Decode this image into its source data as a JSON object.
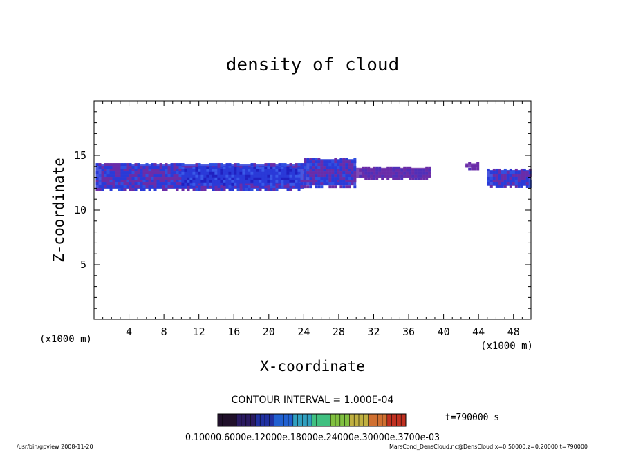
{
  "chart_data": {
    "type": "heatmap",
    "title": "density of cloud",
    "xlabel": "X-coordinate",
    "ylabel": "Z-coordinate",
    "x_unit_left": "(x1000 m)",
    "x_unit_right": "(x1000 m)",
    "xlim": [
      0,
      50
    ],
    "ylim": [
      0,
      20
    ],
    "xticks": [
      "4",
      "8",
      "12",
      "16",
      "20",
      "24",
      "28",
      "32",
      "36",
      "40",
      "44",
      "48"
    ],
    "xtick_values": [
      4,
      8,
      12,
      16,
      20,
      24,
      28,
      32,
      36,
      40,
      44,
      48
    ],
    "yticks": [
      "5",
      "10",
      "15"
    ],
    "ytick_values": [
      5,
      10,
      15
    ],
    "contour_interval": "CONTOUR INTERVAL = 1.000E-04",
    "time_label": "t=790000 s",
    "colorbar_labels": [
      "0.1000e-03",
      "0.6000e-03",
      "0.1200e-02",
      "0.1800e-02",
      "0.2400e-02",
      "0.3000e-02",
      "0.3700e-02"
    ],
    "colorbar_text": "0.10000.6000e.12000e.18000e.24000e.30000e.3700e-03",
    "colors": {
      "low": "#6a2ca8",
      "mid": "#2a3ad8",
      "high": "#2020c0",
      "colorbar": [
        "#20102a",
        "#2a1a60",
        "#2030a0",
        "#2060d0",
        "#30a0c0",
        "#40c080",
        "#80c040",
        "#c0b040",
        "#d07030",
        "#c03020"
      ]
    },
    "cloud_regions": [
      {
        "x_range": [
          0.2,
          24
        ],
        "z_range": [
          11.8,
          14.3
        ],
        "density": "medium"
      },
      {
        "x_range": [
          10,
          23.5
        ],
        "z_range": [
          12.3,
          14.0
        ],
        "density": "high"
      },
      {
        "x_range": [
          24,
          30
        ],
        "z_range": [
          12.2,
          14.8
        ],
        "density": "medium"
      },
      {
        "x_range": [
          30,
          38.5
        ],
        "z_range": [
          12.8,
          14.0
        ],
        "density": "low"
      },
      {
        "x_range": [
          42.5,
          44
        ],
        "z_range": [
          13.8,
          14.4
        ],
        "density": "low"
      },
      {
        "x_range": [
          45,
          50
        ],
        "z_range": [
          12.1,
          13.8
        ],
        "density": "medium"
      }
    ]
  },
  "footer": {
    "left": "/usr/bin/gpview   2008-11-20",
    "right": "MarsCond_DensCloud.nc@DensCloud,x=0:50000,z=0:20000,t=790000"
  }
}
